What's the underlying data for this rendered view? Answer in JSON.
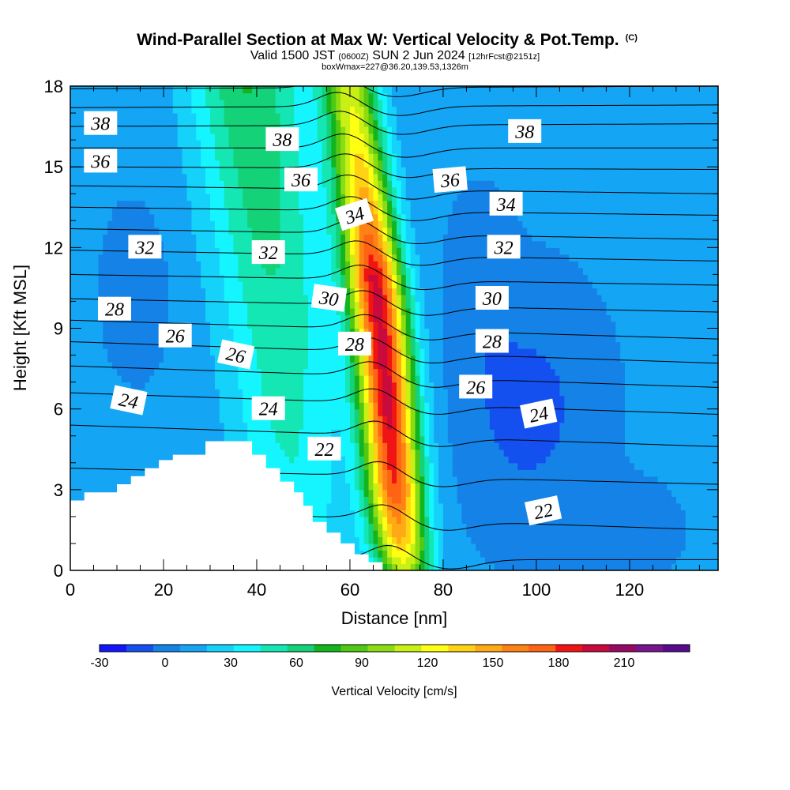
{
  "header": {
    "title": "Wind-Parallel Section at Max W: Vertical Velocity & Pot.Temp.",
    "copyright": "(C)",
    "valid_prefix": "Valid 1500 JST",
    "valid_zulu": "(0600Z)",
    "valid_date": "SUN 2 Jun 2024",
    "fcst": "[12hrFcst@2151z]",
    "box_info": "boxWmax=227@36.20,139.53,1326m"
  },
  "chart_data": {
    "type": "heatmap",
    "xlabel": "Distance [nm]",
    "ylabel": "Height [Kft MSL]",
    "xlim": [
      0,
      139
    ],
    "ylim": [
      0,
      18
    ],
    "x_ticks": [
      0,
      20,
      40,
      60,
      80,
      100,
      120
    ],
    "y_ticks": [
      0,
      3,
      6,
      9,
      12,
      15,
      18
    ],
    "grid": false,
    "colorbar": {
      "label": "Vertical Velocity [cm/s]",
      "min": -30,
      "max": 240,
      "step": 15,
      "tick_values": [
        -30,
        0,
        30,
        60,
        90,
        120,
        150,
        180,
        210
      ],
      "colors": [
        "#1414ff",
        "#1450f0",
        "#1482e6",
        "#14a5f5",
        "#14d2fa",
        "#14f5ff",
        "#14e6b4",
        "#14d278",
        "#14b41e",
        "#50c814",
        "#8cdc14",
        "#c8f014",
        "#ffff14",
        "#ffd214",
        "#ffaa14",
        "#ff8214",
        "#ff6414",
        "#f01414",
        "#c80a3c",
        "#960a64",
        "#78148c",
        "#5a0a8c"
      ]
    },
    "updraft_axis": [
      [
        0.3,
        71.5
      ],
      [
        2,
        70.2
      ],
      [
        4,
        69.2
      ],
      [
        6,
        68.2
      ],
      [
        8,
        67.2
      ],
      [
        10,
        66.0
      ],
      [
        12,
        64.5
      ],
      [
        14,
        63.0
      ],
      [
        16,
        61.5
      ],
      [
        18,
        60.0
      ]
    ],
    "updraft_peak": [
      [
        0,
        120
      ],
      [
        1,
        160
      ],
      [
        3,
        205
      ],
      [
        6,
        227
      ],
      [
        9,
        227
      ],
      [
        11,
        225
      ],
      [
        12,
        200
      ],
      [
        14,
        165
      ],
      [
        16,
        140
      ],
      [
        18,
        125
      ]
    ],
    "terrain": [
      [
        0,
        2.6
      ],
      [
        3,
        2.6
      ],
      [
        3,
        2.9
      ],
      [
        10,
        2.9
      ],
      [
        10,
        3.2
      ],
      [
        13,
        3.2
      ],
      [
        13,
        3.5
      ],
      [
        16,
        3.5
      ],
      [
        16,
        3.8
      ],
      [
        19,
        3.8
      ],
      [
        19,
        4.1
      ],
      [
        22,
        4.1
      ],
      [
        22,
        4.3
      ],
      [
        29,
        4.3
      ],
      [
        29,
        4.8
      ],
      [
        39,
        4.8
      ],
      [
        39,
        4.3
      ],
      [
        42,
        4.3
      ],
      [
        42,
        3.8
      ],
      [
        45,
        3.8
      ],
      [
        45,
        3.3
      ],
      [
        48,
        3.3
      ],
      [
        48,
        2.9
      ],
      [
        50,
        2.9
      ],
      [
        50,
        2.4
      ],
      [
        52,
        2.4
      ],
      [
        52,
        1.8
      ],
      [
        55,
        1.8
      ],
      [
        55,
        1.4
      ],
      [
        58,
        1.4
      ],
      [
        58,
        1.0
      ],
      [
        61,
        1.0
      ],
      [
        61,
        0.6
      ],
      [
        64,
        0.6
      ],
      [
        64,
        0.3
      ],
      [
        67,
        0.3
      ]
    ],
    "theta_levels": [
      21,
      22,
      23,
      24,
      25,
      26,
      27,
      28,
      29,
      30,
      31,
      32,
      33,
      34,
      35,
      36,
      37,
      38,
      39
    ],
    "theta_heights_left": [
      0.4,
      2.3,
      3.8,
      5.4,
      6.6,
      7.6,
      8.5,
      9.3,
      10.1,
      11.0,
      11.9,
      12.7,
      13.5,
      14.3,
      15.0,
      15.7,
      16.5,
      17.2,
      17.9
    ],
    "theta_heights_right": [
      0.4,
      1.5,
      3.2,
      4.6,
      5.8,
      6.8,
      7.7,
      8.6,
      9.6,
      10.6,
      11.5,
      12.3,
      13.2,
      14.0,
      14.9,
      15.7,
      16.6,
      17.3,
      18.0
    ],
    "contour_labels": [
      {
        "text": "38",
        "x": 6.5,
        "y": 16.6,
        "angle": 0
      },
      {
        "text": "38",
        "x": 45.5,
        "y": 16.0,
        "angle": 0
      },
      {
        "text": "38",
        "x": 97.5,
        "y": 16.3,
        "angle": 0
      },
      {
        "text": "36",
        "x": 6.5,
        "y": 15.2,
        "angle": 0
      },
      {
        "text": "36",
        "x": 49.5,
        "y": 14.5,
        "angle": 0
      },
      {
        "text": "36",
        "x": 81.5,
        "y": 14.5,
        "angle": -5
      },
      {
        "text": "34",
        "x": 61.0,
        "y": 13.2,
        "angle": -18
      },
      {
        "text": "34",
        "x": 93.5,
        "y": 13.6,
        "angle": 0
      },
      {
        "text": "32",
        "x": 16.0,
        "y": 12.0,
        "angle": 0
      },
      {
        "text": "32",
        "x": 42.5,
        "y": 11.8,
        "angle": 0
      },
      {
        "text": "32",
        "x": 93.0,
        "y": 12.0,
        "angle": 0
      },
      {
        "text": "30",
        "x": 55.5,
        "y": 10.1,
        "angle": 8
      },
      {
        "text": "30",
        "x": 90.5,
        "y": 10.1,
        "angle": 0
      },
      {
        "text": "28",
        "x": 9.5,
        "y": 9.7,
        "angle": 0
      },
      {
        "text": "28",
        "x": 61.0,
        "y": 8.4,
        "angle": 0
      },
      {
        "text": "28",
        "x": 90.5,
        "y": 8.5,
        "angle": 0
      },
      {
        "text": "26",
        "x": 22.5,
        "y": 8.7,
        "angle": 0
      },
      {
        "text": "26",
        "x": 35.5,
        "y": 8.0,
        "angle": 12
      },
      {
        "text": "26",
        "x": 87.0,
        "y": 6.8,
        "angle": 0
      },
      {
        "text": "24",
        "x": 12.5,
        "y": 6.3,
        "angle": 12
      },
      {
        "text": "24",
        "x": 42.5,
        "y": 6.0,
        "angle": 0
      },
      {
        "text": "24",
        "x": 100.5,
        "y": 5.8,
        "angle": -12
      },
      {
        "text": "22",
        "x": 54.5,
        "y": 4.5,
        "angle": 0
      },
      {
        "text": "22",
        "x": 101.5,
        "y": 2.2,
        "angle": -12
      }
    ]
  }
}
